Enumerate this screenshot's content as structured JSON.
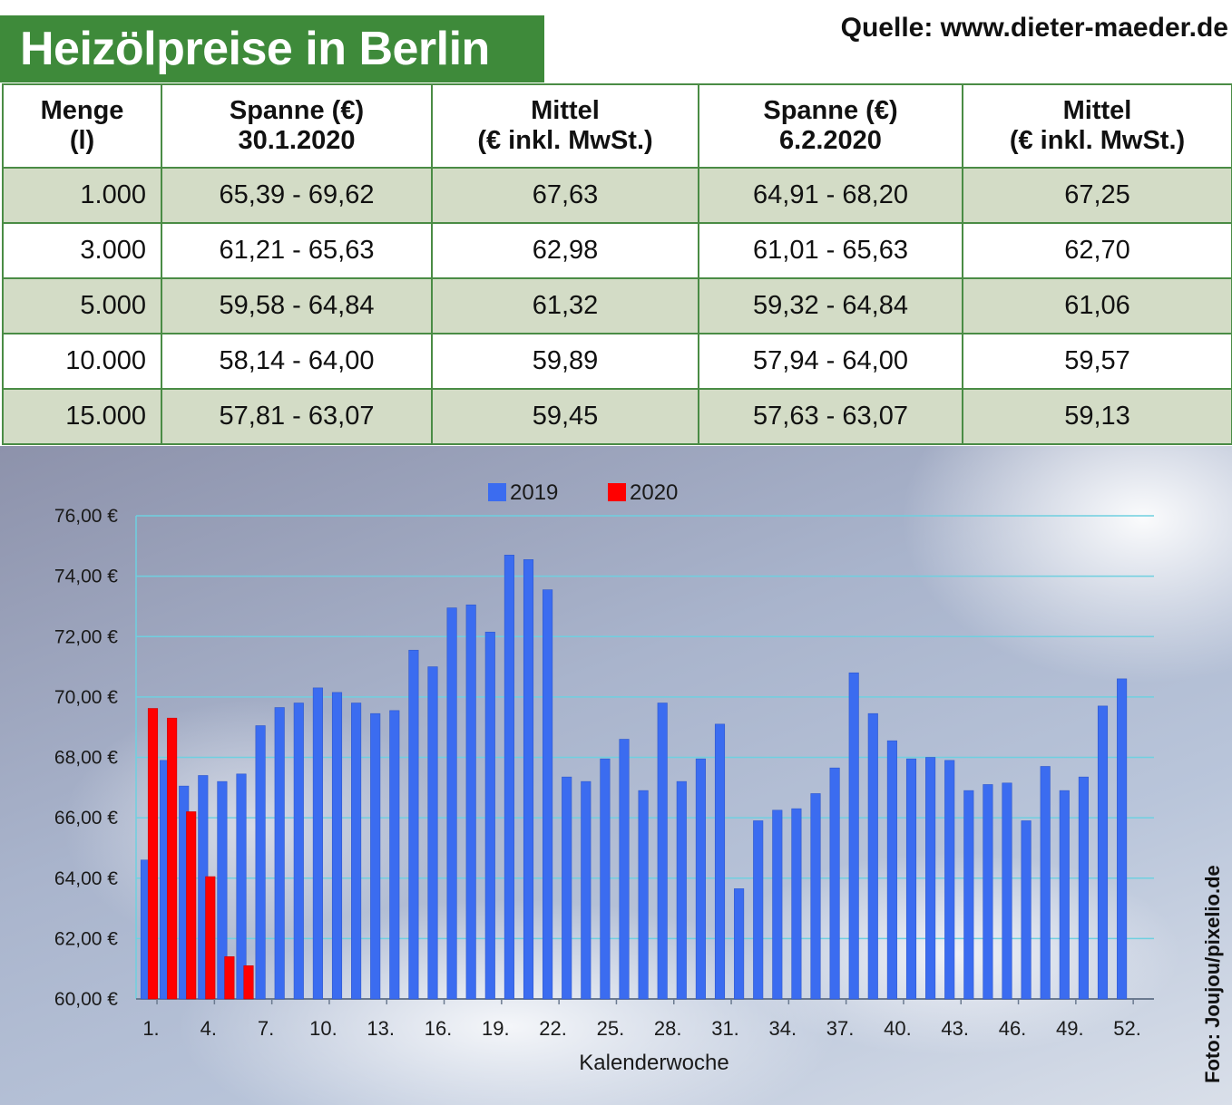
{
  "title": "Heizölpreise in Berlin",
  "source": "Quelle: www.dieter-maeder.de",
  "photo_credit": "Foto: Joujou/pixelio.de",
  "colors": {
    "header_green": "#3e8a3a",
    "row_shade": "#d3dcc6",
    "series_2019": "#3b6cf0",
    "series_2020": "#ff0000"
  },
  "table": {
    "headers": [
      [
        "Menge",
        "(l)"
      ],
      [
        "Spanne (€)",
        "30.1.2020"
      ],
      [
        "Mittel",
        "(€ inkl. MwSt.)"
      ],
      [
        "Spanne (€)",
        "6.2.2020"
      ],
      [
        "Mittel",
        "(€ inkl. MwSt.)"
      ]
    ],
    "rows": [
      [
        "1.000",
        "65,39 - 69,62",
        "67,63",
        "64,91 - 68,20",
        "67,25"
      ],
      [
        "3.000",
        "61,21 - 65,63",
        "62,98",
        "61,01 - 65,63",
        "62,70"
      ],
      [
        "5.000",
        "59,58 - 64,84",
        "61,32",
        "59,32 - 64,84",
        "61,06"
      ],
      [
        "10.000",
        "58,14 - 64,00",
        "59,89",
        "57,94 - 64,00",
        "59,57"
      ],
      [
        "15.000",
        "57,81 - 63,07",
        "59,45",
        "57,63 - 63,07",
        "59,13"
      ]
    ]
  },
  "chart_data": {
    "type": "bar",
    "xlabel": "Kalenderwoche",
    "ylabel": "",
    "ylim": [
      60,
      76
    ],
    "yticks": [
      "60,00 €",
      "62,00 €",
      "64,00 €",
      "66,00 €",
      "68,00 €",
      "70,00 €",
      "72,00 €",
      "74,00 €",
      "76,00 €"
    ],
    "xticks": [
      "1.",
      "4.",
      "7.",
      "10.",
      "13.",
      "16.",
      "19.",
      "22.",
      "25.",
      "28.",
      "31.",
      "34.",
      "37.",
      "40.",
      "43.",
      "46.",
      "49.",
      "52."
    ],
    "grid": true,
    "legend_position": "top-center",
    "categories": [
      1,
      2,
      3,
      4,
      5,
      6,
      7,
      8,
      9,
      10,
      11,
      12,
      13,
      14,
      15,
      16,
      17,
      18,
      19,
      20,
      21,
      22,
      23,
      24,
      25,
      26,
      27,
      28,
      29,
      30,
      31,
      32,
      33,
      34,
      35,
      36,
      37,
      38,
      39,
      40,
      41,
      42,
      43,
      44,
      45,
      46,
      47,
      48,
      49,
      50,
      51,
      52
    ],
    "series": [
      {
        "name": "2019",
        "values": [
          64.6,
          67.9,
          67.05,
          67.4,
          67.2,
          67.45,
          69.05,
          69.65,
          69.8,
          70.3,
          70.15,
          69.8,
          69.45,
          69.55,
          71.55,
          71.0,
          72.95,
          73.05,
          72.15,
          74.7,
          74.55,
          73.55,
          67.35,
          67.2,
          67.95,
          68.6,
          66.9,
          69.8,
          67.2,
          67.95,
          69.1,
          63.65,
          65.9,
          66.25,
          66.3,
          66.8,
          67.65,
          70.8,
          69.45,
          68.55,
          67.95,
          68.0,
          67.9,
          66.9,
          67.1,
          67.15,
          65.9,
          67.7,
          66.9,
          67.35,
          69.7,
          70.6
        ]
      },
      {
        "name": "2020",
        "values": [
          69.62,
          69.3,
          66.2,
          64.05,
          61.4,
          61.1,
          null,
          null,
          null,
          null,
          null,
          null,
          null,
          null,
          null,
          null,
          null,
          null,
          null,
          null,
          null,
          null,
          null,
          null,
          null,
          null,
          null,
          null,
          null,
          null,
          null,
          null,
          null,
          null,
          null,
          null,
          null,
          null,
          null,
          null,
          null,
          null,
          null,
          null,
          null,
          null,
          null,
          null,
          null,
          null,
          null,
          null
        ]
      }
    ]
  }
}
